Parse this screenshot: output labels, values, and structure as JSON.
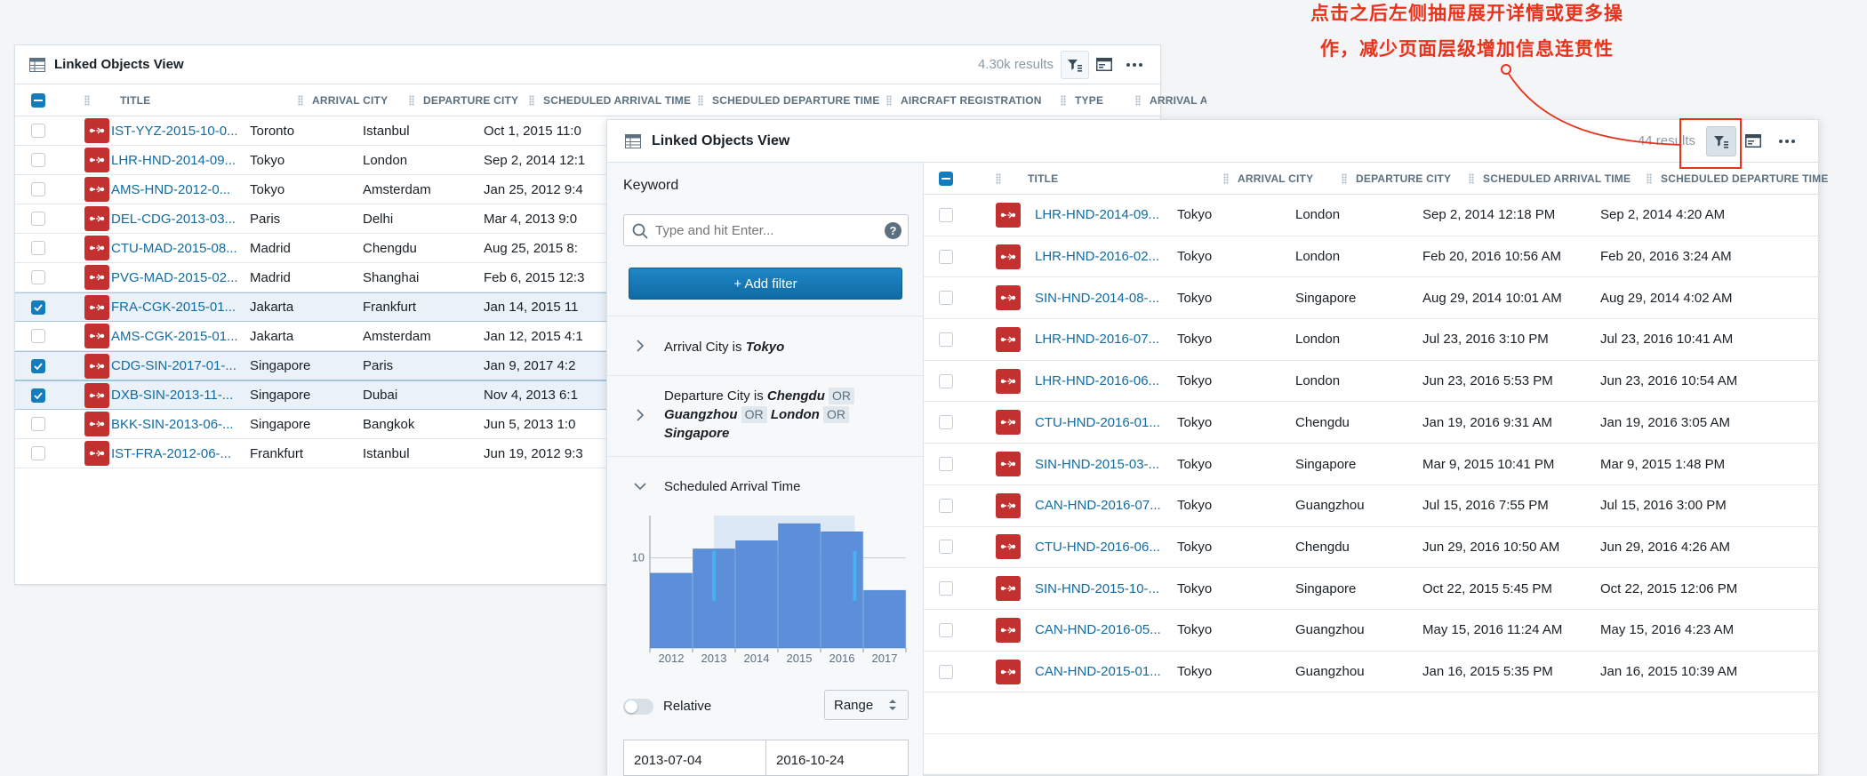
{
  "back_view": {
    "title": "Linked Objects View",
    "results": "4.30k results",
    "columns": [
      "TITLE",
      "ARRIVAL CITY",
      "DEPARTURE CITY",
      "SCHEDULED ARRIVAL TIME",
      "SCHEDULED DEPARTURE TIME",
      "AIRCRAFT REGISTRATION",
      "TYPE",
      "ARRIVAL A"
    ],
    "rows": [
      {
        "title": "IST-YYZ-2015-10-0...",
        "arrival": "Toronto",
        "departure": "Istanbul",
        "sched_arrival": "Oct 1, 2015 11:0",
        "selected": false
      },
      {
        "title": "LHR-HND-2014-09...",
        "arrival": "Tokyo",
        "departure": "London",
        "sched_arrival": "Sep 2, 2014 12:1",
        "selected": false
      },
      {
        "title": "AMS-HND-2012-0...",
        "arrival": "Tokyo",
        "departure": "Amsterdam",
        "sched_arrival": "Jan 25, 2012 9:4",
        "selected": false
      },
      {
        "title": "DEL-CDG-2013-03...",
        "arrival": "Paris",
        "departure": "Delhi",
        "sched_arrival": "Mar 4, 2013 9:0",
        "selected": false
      },
      {
        "title": "CTU-MAD-2015-08...",
        "arrival": "Madrid",
        "departure": "Chengdu",
        "sched_arrival": "Aug 25, 2015 8:",
        "selected": false
      },
      {
        "title": "PVG-MAD-2015-02...",
        "arrival": "Madrid",
        "departure": "Shanghai",
        "sched_arrival": "Feb 6, 2015 12:3",
        "selected": false
      },
      {
        "title": "FRA-CGK-2015-01...",
        "arrival": "Jakarta",
        "departure": "Frankfurt",
        "sched_arrival": "Jan 14, 2015 11",
        "selected": true
      },
      {
        "title": "AMS-CGK-2015-01...",
        "arrival": "Jakarta",
        "departure": "Amsterdam",
        "sched_arrival": "Jan 12, 2015 4:1",
        "selected": false
      },
      {
        "title": "CDG-SIN-2017-01-...",
        "arrival": "Singapore",
        "departure": "Paris",
        "sched_arrival": "Jan 9, 2017 4:2",
        "selected": true
      },
      {
        "title": "DXB-SIN-2013-11-...",
        "arrival": "Singapore",
        "departure": "Dubai",
        "sched_arrival": "Nov 4, 2013 6:1",
        "selected": true
      },
      {
        "title": "BKK-SIN-2013-06-...",
        "arrival": "Singapore",
        "departure": "Bangkok",
        "sched_arrival": "Jun 5, 2013 1:0",
        "selected": false
      },
      {
        "title": "IST-FRA-2012-06-...",
        "arrival": "Frankfurt",
        "departure": "Istanbul",
        "sched_arrival": "Jun 19, 2012 9:3",
        "selected": false
      }
    ]
  },
  "front_view": {
    "title": "Linked Objects View",
    "results": "44 results",
    "columns": [
      "TITLE",
      "ARRIVAL CITY",
      "DEPARTURE CITY",
      "SCHEDULED ARRIVAL TIME",
      "SCHEDULED DEPARTURE TIME"
    ],
    "rows": [
      {
        "title": "LHR-HND-2014-09...",
        "arrival": "Tokyo",
        "departure": "London",
        "sched_arrival": "Sep 2, 2014 12:18 PM",
        "sched_departure": "Sep 2, 2014 4:20 AM"
      },
      {
        "title": "LHR-HND-2016-02...",
        "arrival": "Tokyo",
        "departure": "London",
        "sched_arrival": "Feb 20, 2016 10:56 AM",
        "sched_departure": "Feb 20, 2016 3:24 AM"
      },
      {
        "title": "SIN-HND-2014-08-...",
        "arrival": "Tokyo",
        "departure": "Singapore",
        "sched_arrival": "Aug 29, 2014 10:01 AM",
        "sched_departure": "Aug 29, 2014 4:02 AM"
      },
      {
        "title": "LHR-HND-2016-07...",
        "arrival": "Tokyo",
        "departure": "London",
        "sched_arrival": "Jul 23, 2016 3:10 PM",
        "sched_departure": "Jul 23, 2016 10:41 AM"
      },
      {
        "title": "LHR-HND-2016-06...",
        "arrival": "Tokyo",
        "departure": "London",
        "sched_arrival": "Jun 23, 2016 5:53 PM",
        "sched_departure": "Jun 23, 2016 10:54 AM"
      },
      {
        "title": "CTU-HND-2016-01...",
        "arrival": "Tokyo",
        "departure": "Chengdu",
        "sched_arrival": "Jan 19, 2016 9:31 AM",
        "sched_departure": "Jan 19, 2016 3:05 AM"
      },
      {
        "title": "SIN-HND-2015-03-...",
        "arrival": "Tokyo",
        "departure": "Singapore",
        "sched_arrival": "Mar 9, 2015 10:41 PM",
        "sched_departure": "Mar 9, 2015 1:48 PM"
      },
      {
        "title": "CAN-HND-2016-07...",
        "arrival": "Tokyo",
        "departure": "Guangzhou",
        "sched_arrival": "Jul 15, 2016 7:55 PM",
        "sched_departure": "Jul 15, 2016 3:00 PM"
      },
      {
        "title": "CTU-HND-2016-06...",
        "arrival": "Tokyo",
        "departure": "Chengdu",
        "sched_arrival": "Jun 29, 2016 10:50 AM",
        "sched_departure": "Jun 29, 2016 4:26 AM"
      },
      {
        "title": "SIN-HND-2015-10-...",
        "arrival": "Tokyo",
        "departure": "Singapore",
        "sched_arrival": "Oct 22, 2015 5:45 PM",
        "sched_departure": "Oct 22, 2015 12:06 PM"
      },
      {
        "title": "CAN-HND-2016-05...",
        "arrival": "Tokyo",
        "departure": "Guangzhou",
        "sched_arrival": "May 15, 2016 11:24 AM",
        "sched_departure": "May 15, 2016 4:23 AM"
      },
      {
        "title": "CAN-HND-2015-01...",
        "arrival": "Tokyo",
        "departure": "Guangzhou",
        "sched_arrival": "Jan 16, 2015 5:35 PM",
        "sched_departure": "Jan 16, 2015 10:39 AM"
      }
    ]
  },
  "filters": {
    "keyword_label": "Keyword",
    "search_placeholder": "Type and hit Enter...",
    "add_filter_label": "+ Add filter",
    "f1": {
      "field": "Arrival City is",
      "value": "Tokyo"
    },
    "f2": {
      "field": "Departure City is",
      "v1": "Chengdu",
      "or": "OR",
      "v2": "Guangzhou",
      "v3": "London",
      "v4": "Singapore"
    },
    "f3": {
      "field": "Scheduled Arrival Time"
    },
    "relative_label": "Relative",
    "range_label": "Range",
    "date_from": "2013-07-04",
    "date_to": "2016-10-24"
  },
  "histogram": {
    "type": "bar",
    "categories": [
      "2012",
      "2013",
      "2014",
      "2015",
      "2016",
      "2017"
    ],
    "values": [
      8.3,
      11,
      11.9,
      13.8,
      12.9,
      6.4
    ],
    "y_tick": 10,
    "ylim": [
      0,
      14.7
    ],
    "selected_range": [
      "2013-07-04",
      "2016-10-24"
    ]
  },
  "annotation": {
    "line1": "点击之后左侧抽屉展开详情或更多操",
    "line2": "作，减少页面层级增加信息连贯性"
  },
  "colors": {
    "accent": "#137cbd",
    "object_icon": "#c23030",
    "annotation": "#e8321c",
    "bar": "#5b8fd9"
  }
}
